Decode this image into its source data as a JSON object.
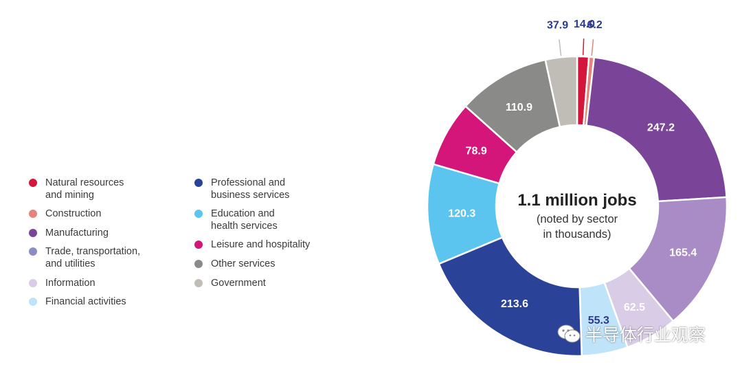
{
  "chart_data": {
    "type": "pie",
    "title": "1.1 million jobs",
    "subtitle": "(noted by sector\nin thousands)",
    "unit": "thousands",
    "slices": [
      {
        "name": "Natural resources\nand mining",
        "value": 14.0,
        "label": "14.0",
        "color": "#d4163c",
        "label_color": "#2d3a8c"
      },
      {
        "name": "Construction",
        "value": 6.2,
        "label": "6.2",
        "color": "#e4857a",
        "label_color": "#2d3a8c"
      },
      {
        "name": "Manufacturing",
        "value": 247.2,
        "label": "247.2",
        "color": "#7a4499",
        "label_color": "#ffffff"
      },
      {
        "name": "Trade, transportation,\nand utilities",
        "value": 165.4,
        "label": "165.4",
        "color": "#a98cc6",
        "label_color": "#ffffff"
      },
      {
        "name": "Information",
        "value": 62.5,
        "label": "62.5",
        "color": "#d8cce6",
        "label_color": "#ffffff"
      },
      {
        "name": "Financial activities",
        "value": 55.3,
        "label": "55.3",
        "color": "#bfe3f8",
        "label_color": "#2d3a8c"
      },
      {
        "name": "Professional and\nbusiness services",
        "value": 213.6,
        "label": "213.6",
        "color": "#2a4399",
        "label_color": "#ffffff"
      },
      {
        "name": "Education and\nhealth services",
        "value": 120.3,
        "label": "120.3",
        "color": "#5bc5ef",
        "label_color": "#ffffff"
      },
      {
        "name": "Leisure and hospitality",
        "value": 78.9,
        "label": "78.9",
        "color": "#d4157a",
        "label_color": "#ffffff"
      },
      {
        "name": "Other services",
        "value": 110.9,
        "label": "110.9",
        "color": "#8a8a88",
        "label_color": "#ffffff"
      },
      {
        "name": "Government",
        "value": 37.9,
        "label": "37.9",
        "color": "#c0bdb7",
        "label_color": "#2d3a8c"
      }
    ],
    "legend_position": "left"
  },
  "legend": {
    "columns": [
      {
        "items": [
          {
            "label": "Natural resources\nand mining",
            "color": "#d4163c"
          },
          {
            "label": "Construction",
            "color": "#e4857a"
          },
          {
            "label": "Manufacturing",
            "color": "#7a4499"
          },
          {
            "label": "Trade, transportation,\nand utilities",
            "color": "#8e8cc4"
          },
          {
            "label": "Information",
            "color": "#d8cce6"
          },
          {
            "label": "Financial activities",
            "color": "#bfe3f8"
          }
        ]
      },
      {
        "items": [
          {
            "label": "Professional and\nbusiness services",
            "color": "#2a4399"
          },
          {
            "label": "Education and\nhealth services",
            "color": "#5bc5ef"
          },
          {
            "label": "Leisure and hospitality",
            "color": "#d4157a"
          },
          {
            "label": "Other services",
            "color": "#8a8a88"
          },
          {
            "label": "Government",
            "color": "#c0bdb7"
          }
        ]
      }
    ]
  },
  "watermark": {
    "icon": "wechat-icon",
    "text": "半导体行业观察"
  }
}
